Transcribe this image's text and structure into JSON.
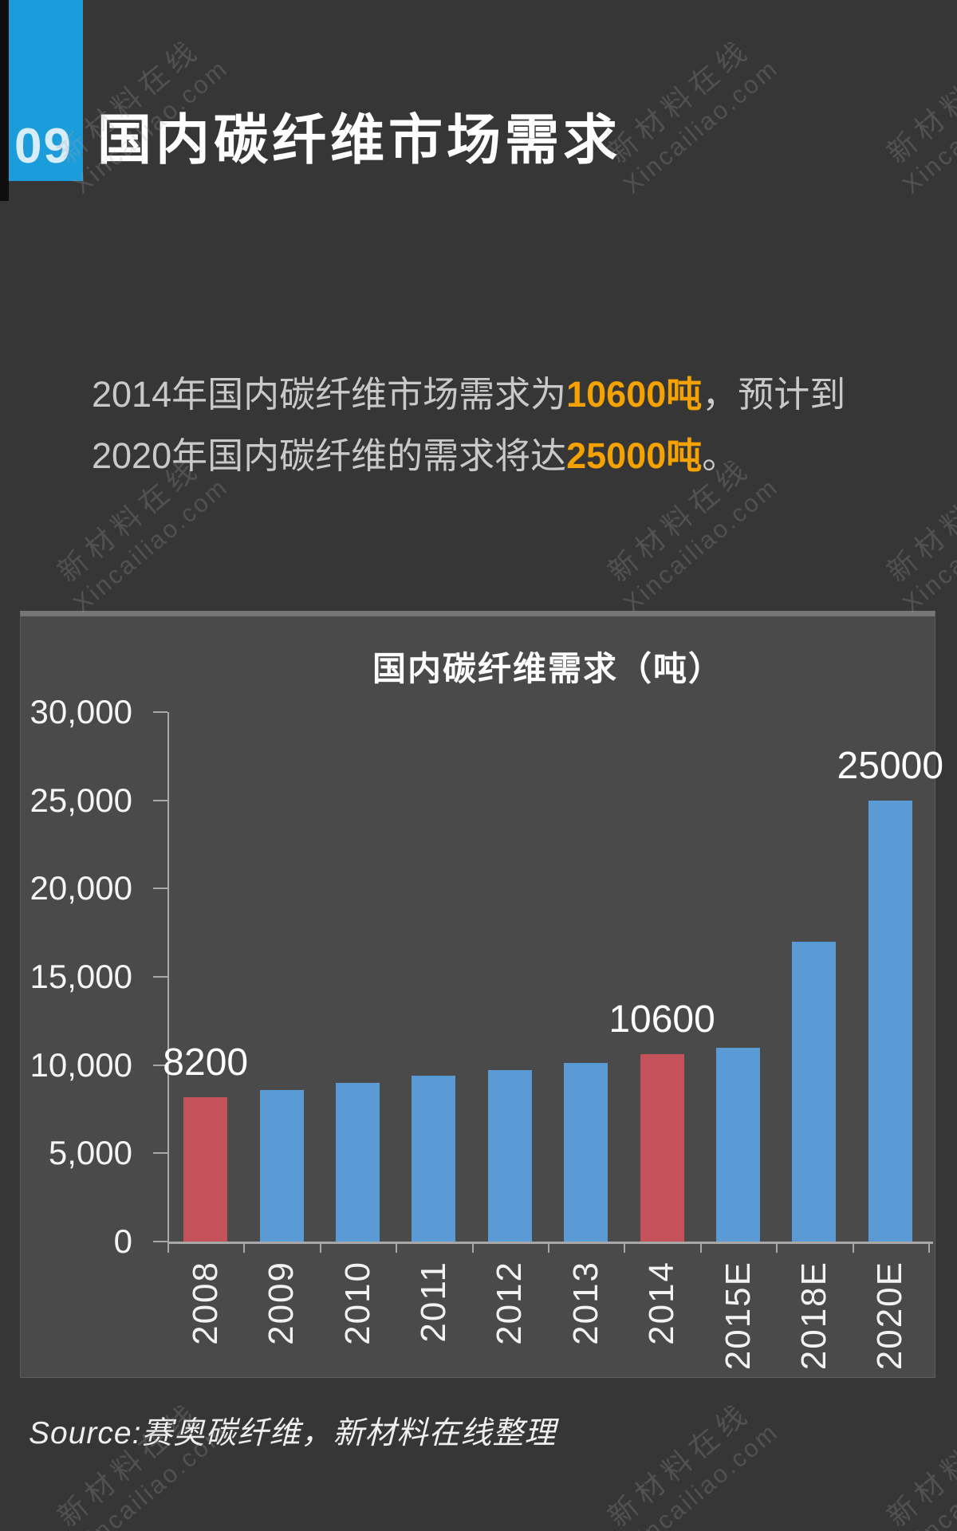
{
  "badge": {
    "number": "09"
  },
  "header": {
    "title": "国内碳纤维市场需求"
  },
  "intro": {
    "emphasis_color": "#f3a200",
    "lines": [
      {
        "segments": [
          {
            "text": "2014年国内碳纤维市场需求为",
            "emphasis": false
          },
          {
            "text": "10600吨",
            "emphasis": true
          },
          {
            "text": "，预计到",
            "emphasis": false
          }
        ]
      },
      {
        "segments": [
          {
            "text": "2020年国内碳纤维的需求将达",
            "emphasis": false
          },
          {
            "text": "25000吨",
            "emphasis": true
          },
          {
            "text": "。",
            "emphasis": false
          }
        ]
      }
    ]
  },
  "chart_data": {
    "type": "bar",
    "title": "国内碳纤维需求（吨）",
    "categories": [
      "2008",
      "2009",
      "2010",
      "2011",
      "2012",
      "2013",
      "2014",
      "2015E",
      "2018E",
      "2020E"
    ],
    "values": [
      8200,
      8600,
      9000,
      9400,
      9700,
      10100,
      10600,
      11000,
      17000,
      25000
    ],
    "bar_colors": [
      "#c5525a",
      "#5b9bd5",
      "#5b9bd5",
      "#5b9bd5",
      "#5b9bd5",
      "#5b9bd5",
      "#c5525a",
      "#5b9bd5",
      "#5b9bd5",
      "#5b9bd5"
    ],
    "data_labels": [
      "8200",
      "",
      "",
      "",
      "",
      "",
      "10600",
      "",
      "",
      "25000"
    ],
    "ylim": [
      0,
      30000
    ],
    "ytick_labels": [
      "0",
      "5,000",
      "10,000",
      "15,000",
      "20,000",
      "25,000",
      "30,000"
    ],
    "grid": false,
    "legend": false,
    "xlabel": "",
    "ylabel": ""
  },
  "source": {
    "text": "Source:赛奥碳纤维，新材料在线整理"
  },
  "watermark": {
    "line1": "新材料在线",
    "line2": "Xincailiao.com"
  },
  "colors": {
    "page_bg": "#363636",
    "panel_bg": "#4a4a4a",
    "badge_bg": "#1b9cdb",
    "bar_blue": "#5b9bd5",
    "bar_red": "#c5525a",
    "emphasis_orange": "#f3a200"
  }
}
